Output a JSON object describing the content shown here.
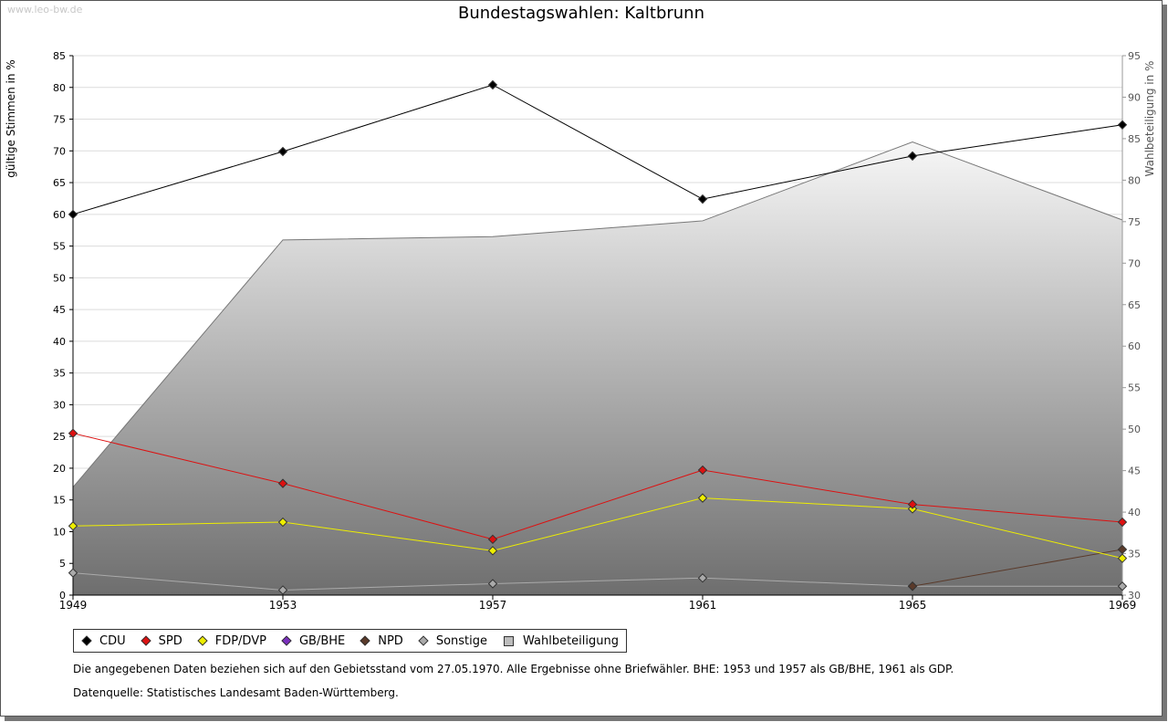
{
  "header": {
    "watermark": "www.leo-bw.de",
    "title": "Bundestagswahlen: Kaltbrunn"
  },
  "chart_data": {
    "type": "line",
    "title": "Bundestagswahlen: Kaltbrunn",
    "ylabel": "gültige Stimmen in %",
    "ylabel_right": "Wahlbeteiligung in %",
    "x": [
      "1949",
      "1953",
      "1957",
      "1961",
      "1965",
      "1969"
    ],
    "ylim": [
      0,
      85
    ],
    "y_ticks": [
      0,
      5,
      10,
      15,
      20,
      25,
      30,
      35,
      40,
      45,
      50,
      55,
      60,
      65,
      70,
      75,
      80,
      85
    ],
    "ylim_right": [
      30,
      95
    ],
    "y_ticks_right": [
      30,
      35,
      40,
      45,
      50,
      55,
      60,
      65,
      70,
      75,
      80,
      85,
      90,
      95
    ],
    "grid": true,
    "legend_position": "bottom",
    "series": [
      {
        "name": "CDU",
        "color": "#000000",
        "axis": "left",
        "values": [
          60.0,
          69.9,
          80.4,
          62.4,
          69.2,
          74.1
        ]
      },
      {
        "name": "SPD",
        "color": "#dd1111",
        "axis": "left",
        "values": [
          25.5,
          17.6,
          8.8,
          19.7,
          14.3,
          11.5
        ]
      },
      {
        "name": "FDP/DVP",
        "color": "#eeee00",
        "axis": "left",
        "values": [
          10.9,
          11.5,
          7.0,
          15.3,
          13.6,
          5.8
        ]
      },
      {
        "name": "GB/BHE",
        "color": "#7b2fbe",
        "axis": "left",
        "values": [
          null,
          null,
          null,
          null,
          null,
          null
        ]
      },
      {
        "name": "NPD",
        "color": "#5a3a2a",
        "axis": "left",
        "values": [
          null,
          null,
          null,
          null,
          1.4,
          7.2
        ]
      },
      {
        "name": "Sonstige",
        "color": "#aaaaaa",
        "axis": "left",
        "values": [
          3.5,
          0.8,
          1.8,
          2.7,
          1.4,
          1.4
        ]
      },
      {
        "name": "Wahlbeteiligung",
        "type": "area",
        "color": "#888888",
        "axis": "right",
        "values": [
          43.0,
          72.8,
          73.2,
          75.1,
          84.6,
          75.2
        ]
      }
    ]
  },
  "notes": {
    "line1": "Die angegebenen Daten beziehen sich auf den Gebietsstand vom 27.05.1970. Alle Ergebnisse ohne Briefwähler. BHE: 1953 und 1957 als GB/BHE, 1961 als GDP.",
    "line2": "Datenquelle: Statistisches Landesamt Baden-Württemberg."
  }
}
